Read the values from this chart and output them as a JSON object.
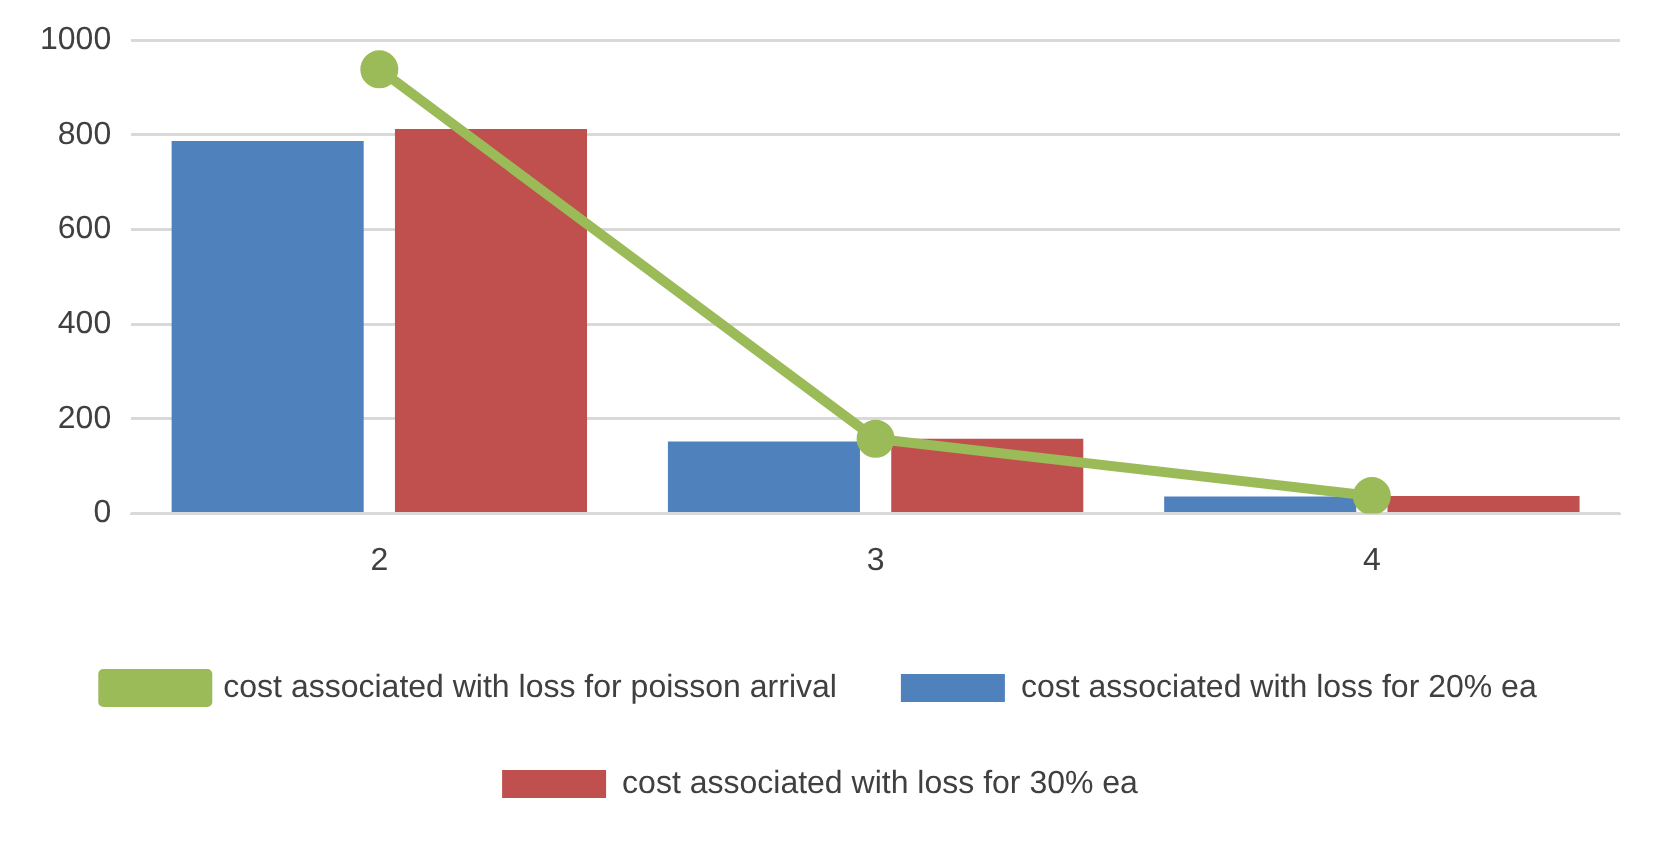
{
  "chart_data": {
    "type": "bar",
    "categories": [
      "2",
      "3",
      "4"
    ],
    "series": [
      {
        "name": "cost associated with loss for 20% ea",
        "color": "#4f81bd",
        "values": [
          787,
          152,
          36
        ]
      },
      {
        "name": "cost associated with loss for 30% ea",
        "color": "#c0504d",
        "values": [
          812,
          158,
          37
        ]
      },
      {
        "name": "cost associated with loss for poisson arrival",
        "color": "#9bbb59",
        "type": "line",
        "marker": "circle",
        "values": [
          938,
          158,
          37
        ]
      }
    ],
    "ylim": [
      0,
      1000
    ],
    "yticks": [
      0,
      200,
      400,
      600,
      800,
      1000
    ],
    "grid": "y",
    "legend": "bottom"
  }
}
